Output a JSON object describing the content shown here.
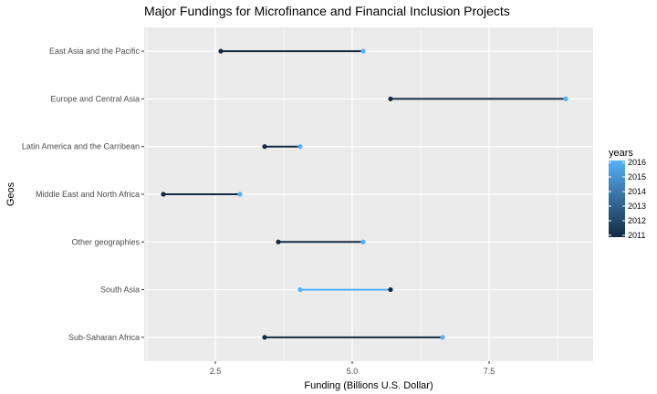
{
  "chart_data": {
    "type": "dumbbell",
    "title": "Major Fundings for Microfinance and Financial Inclusion Projects",
    "xlabel": "Funding (Billions U.S. Dollar)",
    "ylabel": "Geos",
    "xlim": [
      1.2,
      9.4
    ],
    "x_ticks": [
      2.5,
      5.0,
      7.5
    ],
    "x_tick_labels": [
      "2.5",
      "5.0",
      "7.5"
    ],
    "grid": true,
    "categories": [
      "East Asia and the Pacific",
      "Europe and Central Asia",
      "Latin America and the Carribean",
      "Middle East and North Africa",
      "Other geographies",
      "South Asia",
      "Sub-Saharan Africa"
    ],
    "series": [
      {
        "name": "2011",
        "values": [
          2.6,
          5.7,
          3.4,
          1.55,
          3.65,
          5.7,
          3.4
        ]
      },
      {
        "name": "2016",
        "values": [
          5.2,
          8.9,
          4.05,
          2.95,
          5.2,
          4.05,
          6.65
        ]
      }
    ],
    "legend": {
      "title": "years",
      "position": "right",
      "labels": [
        "2016",
        "2015",
        "2014",
        "2013",
        "2012",
        "2011"
      ]
    },
    "colors": {
      "low": "#132B43",
      "high": "#56B1F7",
      "panel": "#EBEBEB",
      "grid_major": "#FFFFFF"
    }
  }
}
